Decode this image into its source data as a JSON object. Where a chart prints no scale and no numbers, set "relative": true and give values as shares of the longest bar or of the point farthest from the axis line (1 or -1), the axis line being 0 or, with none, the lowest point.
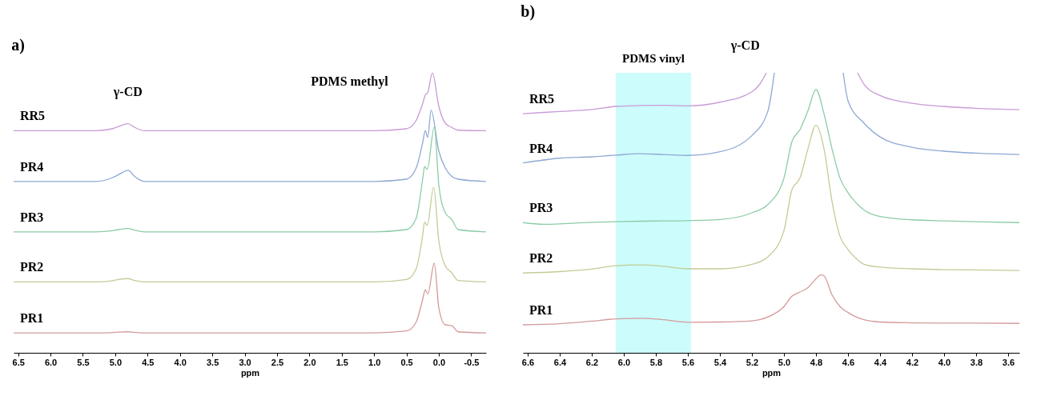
{
  "chart_data": [
    {
      "type": "line",
      "title": "a)",
      "xlabel": "ppm",
      "relative": true,
      "legend": false,
      "grid": false,
      "xlim": [
        6.57,
        -0.73
      ],
      "xticks": [
        {
          "value": 6.5,
          "label": "6.5"
        },
        {
          "value": 6,
          "label": "6.0"
        },
        {
          "value": 5.5,
          "label": "5.5"
        },
        {
          "value": 5,
          "label": "5.0"
        },
        {
          "value": 4.5,
          "label": "4.5"
        },
        {
          "value": 4,
          "label": "4.0"
        },
        {
          "value": 3.5,
          "label": "3.5"
        },
        {
          "value": 3,
          "label": "3.0"
        },
        {
          "value": 2.5,
          "label": "2.5"
        },
        {
          "value": 2,
          "label": "2.0"
        },
        {
          "value": 1.5,
          "label": "1.5"
        },
        {
          "value": 1,
          "label": "1.0"
        },
        {
          "value": 0.5,
          "label": "0.5"
        },
        {
          "value": 0,
          "label": "0.0"
        },
        {
          "value": -0.5,
          "label": "-0.5"
        }
      ],
      "series": [
        {
          "name": "RR5",
          "color": "#c99ad6",
          "x": [
            6.57,
            5.3,
            5.05,
            4.95,
            4.8,
            4.7,
            4.55,
            1.0,
            0.5,
            0.35,
            0.25,
            0.21,
            0.17,
            0.1,
            0.0,
            -0.1,
            -0.2,
            -0.3,
            -0.73
          ],
          "values": [
            0.793,
            0.793,
            0.8,
            0.808,
            0.818,
            0.805,
            0.793,
            0.793,
            0.8,
            0.83,
            0.89,
            0.92,
            0.93,
            1.0,
            0.88,
            0.82,
            0.805,
            0.795,
            0.793
          ]
        },
        {
          "name": "PR4",
          "color": "#8fa8d4",
          "x": [
            6.57,
            5.3,
            5.05,
            4.95,
            4.8,
            4.7,
            4.55,
            1.0,
            0.5,
            0.35,
            0.25,
            0.21,
            0.17,
            0.12,
            0.0,
            -0.1,
            -0.2,
            -0.3,
            -0.73
          ],
          "values": [
            0.612,
            0.612,
            0.625,
            0.636,
            0.652,
            0.63,
            0.612,
            0.612,
            0.62,
            0.66,
            0.75,
            0.793,
            0.77,
            0.867,
            0.72,
            0.66,
            0.63,
            0.62,
            0.612
          ]
        },
        {
          "name": "PR3",
          "color": "#8ccca6",
          "x": [
            6.57,
            5.3,
            5.05,
            4.95,
            4.8,
            4.7,
            4.55,
            1.0,
            0.5,
            0.35,
            0.25,
            0.22,
            0.18,
            0.07,
            0.0,
            -0.1,
            -0.2,
            -0.3,
            -0.73
          ],
          "values": [
            0.432,
            0.432,
            0.436,
            0.44,
            0.444,
            0.438,
            0.432,
            0.432,
            0.44,
            0.48,
            0.62,
            0.665,
            0.655,
            0.807,
            0.6,
            0.5,
            0.476,
            0.44,
            0.432
          ]
        },
        {
          "name": "PR2",
          "color": "#c2cc96",
          "x": [
            6.57,
            5.3,
            5.05,
            4.95,
            4.8,
            4.7,
            4.55,
            1.0,
            0.5,
            0.35,
            0.25,
            0.22,
            0.18,
            0.08,
            0.0,
            -0.1,
            -0.2,
            -0.3,
            -0.73
          ],
          "values": [
            0.253,
            0.253,
            0.257,
            0.262,
            0.265,
            0.258,
            0.253,
            0.253,
            0.262,
            0.3,
            0.42,
            0.467,
            0.455,
            0.591,
            0.4,
            0.31,
            0.286,
            0.258,
            0.253
          ]
        },
        {
          "name": "PR1",
          "color": "#d49a9a",
          "x": [
            6.57,
            5.3,
            5.05,
            4.95,
            4.8,
            4.7,
            4.55,
            1.0,
            0.5,
            0.35,
            0.25,
            0.21,
            0.17,
            0.07,
            0.0,
            -0.1,
            -0.2,
            -0.3,
            -0.73
          ],
          "values": [
            0.071,
            0.071,
            0.072,
            0.074,
            0.075,
            0.073,
            0.071,
            0.071,
            0.078,
            0.11,
            0.19,
            0.225,
            0.21,
            0.32,
            0.16,
            0.1,
            0.097,
            0.075,
            0.071
          ]
        }
      ],
      "annotations": [
        "γ-CD",
        "PDMS methyl"
      ]
    },
    {
      "type": "line",
      "title": "b)",
      "xlabel": "ppm",
      "relative": true,
      "legend": false,
      "grid": false,
      "xlim": [
        6.63,
        3.53
      ],
      "xticks": [
        {
          "value": 6.6,
          "label": "6.6"
        },
        {
          "value": 6.4,
          "label": "6.4"
        },
        {
          "value": 6.2,
          "label": "6.2"
        },
        {
          "value": 6.0,
          "label": "6.0"
        },
        {
          "value": 5.8,
          "label": "5.8"
        },
        {
          "value": 5.6,
          "label": "5.6"
        },
        {
          "value": 5.4,
          "label": "5.4"
        },
        {
          "value": 5.2,
          "label": "5.2"
        },
        {
          "value": 5.0,
          "label": "5.0"
        },
        {
          "value": 4.8,
          "label": "4.8"
        },
        {
          "value": 4.6,
          "label": "4.6"
        },
        {
          "value": 4.4,
          "label": "4.4"
        },
        {
          "value": 4.2,
          "label": "4.2"
        },
        {
          "value": 4.0,
          "label": "4.0"
        },
        {
          "value": 3.8,
          "label": "3.8"
        },
        {
          "value": 3.6,
          "label": "3.6"
        }
      ],
      "bands": [
        {
          "axis": "x",
          "from": 6.05,
          "to": 5.58,
          "label": "PDMS vinyl",
          "color": "#ccfcfc"
        }
      ],
      "series": [
        {
          "name": "RR5",
          "color": "#c99ad6",
          "x": [
            6.63,
            6.4,
            6.2,
            6.05,
            5.9,
            5.75,
            5.6,
            5.4,
            5.2,
            5.15,
            5.11,
            4.8,
            4.54,
            4.5,
            4.4,
            4.2,
            4.0,
            3.8,
            3.53
          ],
          "values": [
            0.854,
            0.862,
            0.869,
            0.88,
            0.883,
            0.884,
            0.882,
            0.895,
            0.932,
            0.96,
            1.0,
            null,
            1.0,
            0.959,
            0.919,
            0.891,
            0.88,
            0.873,
            0.868
          ]
        },
        {
          "name": "PR4",
          "color": "#8fa8d4",
          "x": [
            6.63,
            6.4,
            6.2,
            6.05,
            5.9,
            5.75,
            5.6,
            5.4,
            5.2,
            5.1,
            5.06,
            4.8,
            4.63,
            4.6,
            4.5,
            4.4,
            4.2,
            4.0,
            3.8,
            3.53
          ],
          "values": [
            0.678,
            0.695,
            0.7,
            0.706,
            0.711,
            0.708,
            0.705,
            0.718,
            0.776,
            0.864,
            1.0,
            null,
            1.0,
            0.9,
            0.82,
            0.771,
            0.734,
            0.72,
            0.713,
            0.708
          ]
        },
        {
          "name": "PR3",
          "color": "#8ccca6",
          "x": [
            6.63,
            6.5,
            6.2,
            6.05,
            5.9,
            5.75,
            5.6,
            5.4,
            5.2,
            5.1,
            5.0,
            4.95,
            4.9,
            4.85,
            4.8,
            4.75,
            4.7,
            4.65,
            4.6,
            4.55,
            4.5,
            4.4,
            4.2,
            4.0,
            3.8,
            3.53
          ],
          "values": [
            0.465,
            0.459,
            0.466,
            0.468,
            0.47,
            0.471,
            0.472,
            0.476,
            0.5,
            0.53,
            0.624,
            0.755,
            0.797,
            0.865,
            0.94,
            0.854,
            0.729,
            0.624,
            0.572,
            0.536,
            0.51,
            0.487,
            0.475,
            0.471,
            0.468,
            0.465
          ]
        },
        {
          "name": "PR2",
          "color": "#c2cc96",
          "x": [
            6.63,
            6.4,
            6.2,
            6.05,
            5.9,
            5.75,
            5.6,
            5.4,
            5.2,
            5.1,
            5.0,
            4.95,
            4.9,
            4.85,
            4.8,
            4.75,
            4.7,
            4.65,
            4.6,
            4.55,
            4.5,
            4.4,
            4.2,
            4.0,
            3.8,
            3.53
          ],
          "values": [
            0.285,
            0.29,
            0.299,
            0.311,
            0.314,
            0.309,
            0.3,
            0.3,
            0.316,
            0.343,
            0.436,
            0.583,
            0.624,
            0.729,
            0.813,
            0.729,
            0.541,
            0.416,
            0.369,
            0.337,
            0.316,
            0.306,
            0.3,
            0.297,
            0.296,
            0.294
          ]
        },
        {
          "name": "PR1",
          "color": "#d49a9a",
          "x": [
            6.63,
            6.4,
            6.2,
            6.05,
            5.9,
            5.75,
            5.6,
            5.4,
            5.2,
            5.1,
            5.0,
            4.95,
            4.9,
            4.85,
            4.8,
            4.77,
            4.75,
            4.7,
            4.65,
            4.6,
            4.55,
            4.5,
            4.4,
            4.2,
            4.0,
            3.8,
            3.53
          ],
          "values": [
            0.1,
            0.104,
            0.113,
            0.121,
            0.123,
            0.118,
            0.109,
            0.11,
            0.114,
            0.128,
            0.165,
            0.202,
            0.217,
            0.233,
            0.264,
            0.278,
            0.275,
            0.207,
            0.165,
            0.144,
            0.128,
            0.118,
            0.11,
            0.107,
            0.106,
            0.106,
            0.105
          ]
        }
      ],
      "annotations": [
        "γ-CD"
      ]
    }
  ]
}
